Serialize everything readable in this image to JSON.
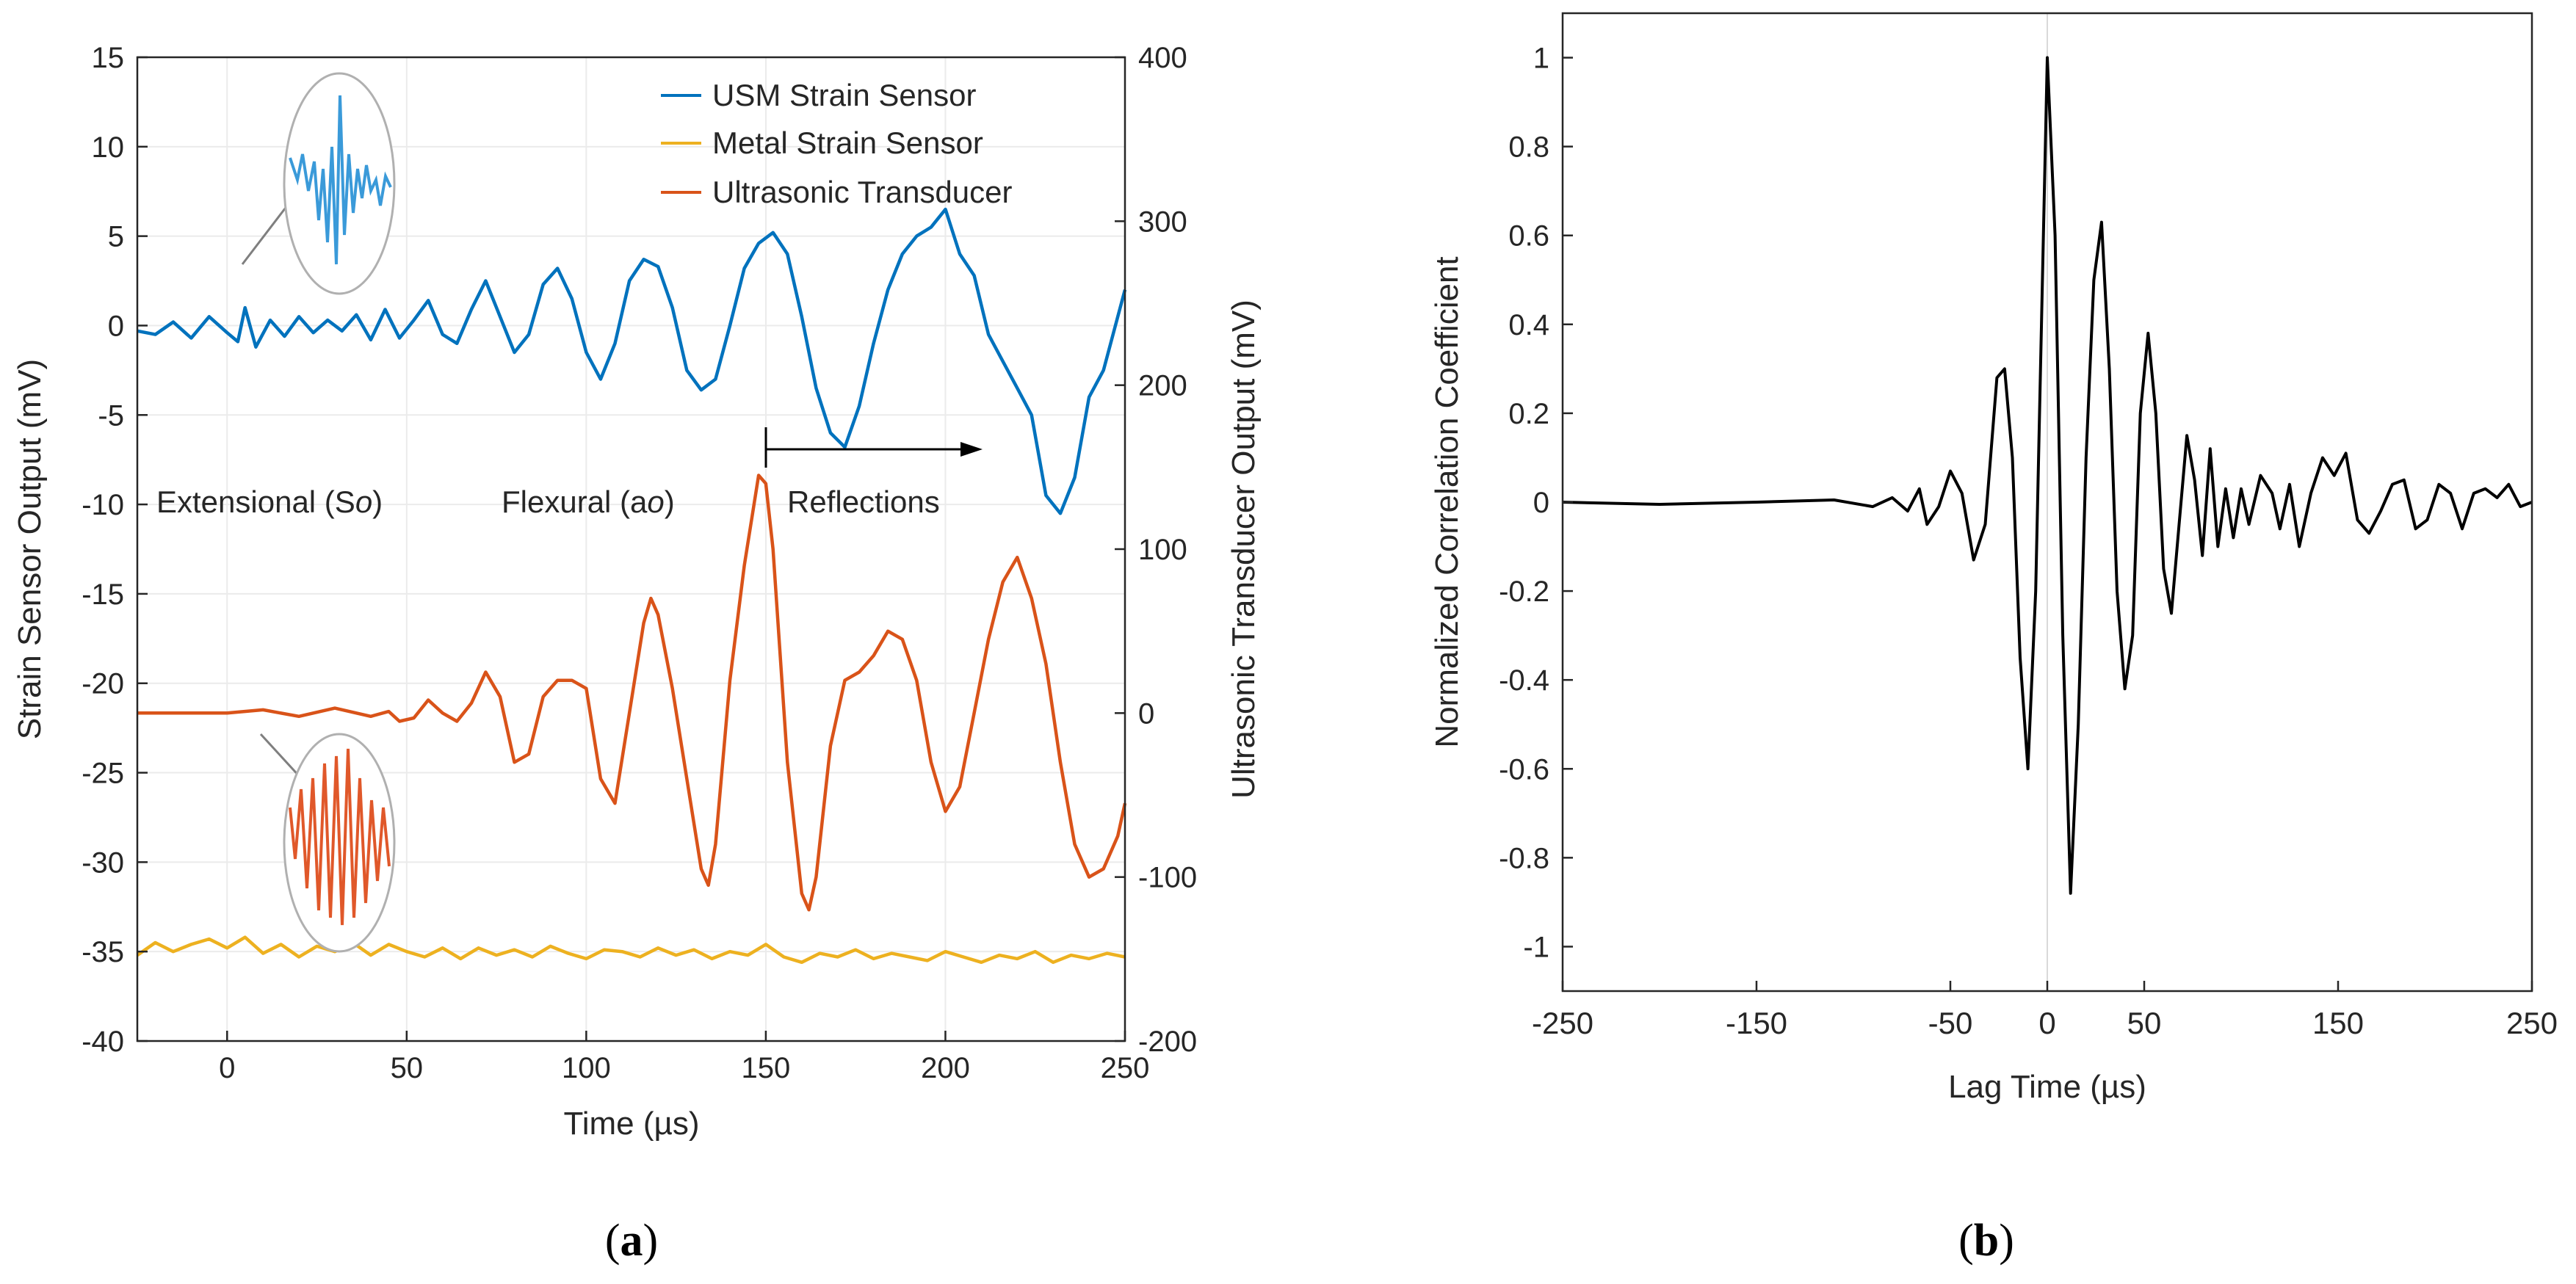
{
  "chart_data": [
    {
      "panel_label": "a",
      "type": "line",
      "title": "",
      "xlabel": "Time (µs)",
      "ylabel": "Strain Sensor Output (mV)",
      "y2label": "Ultrasonic Transducer Output (mV)",
      "xlim": [
        -25,
        250
      ],
      "ylim": [
        -40,
        15
      ],
      "y2lim": [
        -200,
        400
      ],
      "xticks": [
        0,
        50,
        100,
        150,
        200,
        250
      ],
      "yticks": [
        15,
        10,
        5,
        0,
        -5,
        -10,
        -15,
        -20,
        -25,
        -30,
        -35,
        -40
      ],
      "y2ticks": [
        400,
        300,
        200,
        100,
        0,
        -100,
        -200
      ],
      "grid": true,
      "legend": "top-right",
      "annotations": [
        {
          "text": "Extensional (S",
          "sub": "o",
          "tail": ")"
        },
        {
          "text": "Flexural (a",
          "sub": "o",
          "tail": ")"
        },
        {
          "text": "Reflections"
        }
      ],
      "series": [
        {
          "name": "USM Strain Sensor",
          "color": "#0072BD",
          "axis": "left",
          "points": [
            [
              -25,
              -0.3
            ],
            [
              -20,
              -0.5
            ],
            [
              -15,
              0.2
            ],
            [
              -10,
              -0.7
            ],
            [
              -5,
              0.5
            ],
            [
              0,
              -0.4
            ],
            [
              3,
              -0.9
            ],
            [
              5,
              1.0
            ],
            [
              8,
              -1.2
            ],
            [
              12,
              0.3
            ],
            [
              16,
              -0.6
            ],
            [
              20,
              0.5
            ],
            [
              24,
              -0.4
            ],
            [
              28,
              0.3
            ],
            [
              32,
              -0.3
            ],
            [
              36,
              0.6
            ],
            [
              40,
              -0.8
            ],
            [
              44,
              0.9
            ],
            [
              48,
              -0.7
            ],
            [
              52,
              0.3
            ],
            [
              56,
              1.4
            ],
            [
              60,
              -0.5
            ],
            [
              64,
              -1.0
            ],
            [
              68,
              0.9
            ],
            [
              72,
              2.5
            ],
            [
              76,
              0.5
            ],
            [
              80,
              -1.5
            ],
            [
              84,
              -0.5
            ],
            [
              88,
              2.3
            ],
            [
              92,
              3.2
            ],
            [
              96,
              1.5
            ],
            [
              100,
              -1.5
            ],
            [
              104,
              -3.0
            ],
            [
              108,
              -1.0
            ],
            [
              112,
              2.5
            ],
            [
              116,
              3.7
            ],
            [
              120,
              3.3
            ],
            [
              124,
              1.0
            ],
            [
              128,
              -2.5
            ],
            [
              132,
              -3.6
            ],
            [
              136,
              -3.0
            ],
            [
              140,
              0.0
            ],
            [
              144,
              3.2
            ],
            [
              148,
              4.6
            ],
            [
              152,
              5.2
            ],
            [
              156,
              4.0
            ],
            [
              160,
              0.5
            ],
            [
              164,
              -3.5
            ],
            [
              168,
              -6.0
            ],
            [
              172,
              -6.8
            ],
            [
              176,
              -4.5
            ],
            [
              180,
              -1.0
            ],
            [
              184,
              2.0
            ],
            [
              188,
              4.0
            ],
            [
              192,
              5.0
            ],
            [
              196,
              5.5
            ],
            [
              200,
              6.5
            ],
            [
              204,
              4.0
            ],
            [
              208,
              2.8
            ],
            [
              212,
              -0.5
            ],
            [
              216,
              -2.0
            ],
            [
              220,
              -3.5
            ],
            [
              224,
              -5.0
            ],
            [
              228,
              -9.5
            ],
            [
              232,
              -10.5
            ],
            [
              236,
              -8.5
            ],
            [
              240,
              -4.0
            ],
            [
              244,
              -2.5
            ],
            [
              248,
              0.5
            ],
            [
              250,
              2.0
            ]
          ]
        },
        {
          "name": "Metal Strain Sensor",
          "color": "#EDB120",
          "axis": "left",
          "points": [
            [
              -25,
              -35.2
            ],
            [
              -20,
              -34.5
            ],
            [
              -15,
              -35.0
            ],
            [
              -10,
              -34.6
            ],
            [
              -5,
              -34.3
            ],
            [
              0,
              -34.8
            ],
            [
              5,
              -34.2
            ],
            [
              10,
              -35.1
            ],
            [
              15,
              -34.6
            ],
            [
              20,
              -35.3
            ],
            [
              25,
              -34.7
            ],
            [
              30,
              -35.0
            ],
            [
              35,
              -34.5
            ],
            [
              40,
              -35.2
            ],
            [
              45,
              -34.6
            ],
            [
              50,
              -35.0
            ],
            [
              55,
              -35.3
            ],
            [
              60,
              -34.8
            ],
            [
              65,
              -35.4
            ],
            [
              70,
              -34.8
            ],
            [
              75,
              -35.2
            ],
            [
              80,
              -34.9
            ],
            [
              85,
              -35.3
            ],
            [
              90,
              -34.7
            ],
            [
              95,
              -35.1
            ],
            [
              100,
              -35.4
            ],
            [
              105,
              -34.9
            ],
            [
              110,
              -35.0
            ],
            [
              115,
              -35.3
            ],
            [
              120,
              -34.8
            ],
            [
              125,
              -35.2
            ],
            [
              130,
              -34.9
            ],
            [
              135,
              -35.4
            ],
            [
              140,
              -35.0
            ],
            [
              145,
              -35.2
            ],
            [
              150,
              -34.6
            ],
            [
              155,
              -35.3
            ],
            [
              160,
              -35.6
            ],
            [
              165,
              -35.1
            ],
            [
              170,
              -35.3
            ],
            [
              175,
              -34.9
            ],
            [
              180,
              -35.4
            ],
            [
              185,
              -35.1
            ],
            [
              190,
              -35.3
            ],
            [
              195,
              -35.5
            ],
            [
              200,
              -35.0
            ],
            [
              205,
              -35.3
            ],
            [
              210,
              -35.6
            ],
            [
              215,
              -35.2
            ],
            [
              220,
              -35.4
            ],
            [
              225,
              -35.0
            ],
            [
              230,
              -35.6
            ],
            [
              235,
              -35.2
            ],
            [
              240,
              -35.4
            ],
            [
              245,
              -35.1
            ],
            [
              250,
              -35.3
            ]
          ]
        },
        {
          "name": "Ultrasonic Transducer",
          "color": "#D95319",
          "axis": "right",
          "points": [
            [
              -25,
              0
            ],
            [
              0,
              0
            ],
            [
              10,
              2
            ],
            [
              20,
              -2
            ],
            [
              30,
              3
            ],
            [
              40,
              -2
            ],
            [
              45,
              1
            ],
            [
              48,
              -5
            ],
            [
              52,
              -3
            ],
            [
              56,
              8
            ],
            [
              60,
              0
            ],
            [
              64,
              -5
            ],
            [
              68,
              6
            ],
            [
              72,
              25
            ],
            [
              76,
              10
            ],
            [
              80,
              -30
            ],
            [
              84,
              -25
            ],
            [
              88,
              10
            ],
            [
              92,
              20
            ],
            [
              96,
              20
            ],
            [
              100,
              15
            ],
            [
              104,
              -40
            ],
            [
              108,
              -55
            ],
            [
              112,
              0
            ],
            [
              116,
              55
            ],
            [
              118,
              70
            ],
            [
              120,
              60
            ],
            [
              124,
              15
            ],
            [
              128,
              -40
            ],
            [
              132,
              -95
            ],
            [
              134,
              -105
            ],
            [
              136,
              -80
            ],
            [
              140,
              20
            ],
            [
              144,
              90
            ],
            [
              148,
              145
            ],
            [
              150,
              140
            ],
            [
              152,
              100
            ],
            [
              156,
              -30
            ],
            [
              160,
              -110
            ],
            [
              162,
              -120
            ],
            [
              164,
              -100
            ],
            [
              168,
              -20
            ],
            [
              172,
              20
            ],
            [
              176,
              25
            ],
            [
              180,
              35
            ],
            [
              184,
              50
            ],
            [
              188,
              45
            ],
            [
              192,
              20
            ],
            [
              196,
              -30
            ],
            [
              200,
              -60
            ],
            [
              204,
              -45
            ],
            [
              208,
              0
            ],
            [
              212,
              45
            ],
            [
              216,
              80
            ],
            [
              220,
              95
            ],
            [
              224,
              70
            ],
            [
              228,
              30
            ],
            [
              232,
              -30
            ],
            [
              236,
              -80
            ],
            [
              240,
              -100
            ],
            [
              244,
              -95
            ],
            [
              248,
              -75
            ],
            [
              250,
              -55
            ]
          ]
        }
      ]
    },
    {
      "panel_label": "b",
      "type": "line",
      "title": "",
      "xlabel": "Lag Time (µs)",
      "ylabel": "Normalized Correlation Coefficient",
      "xlim": [
        -250,
        250
      ],
      "ylim": [
        -1.1,
        1.1
      ],
      "xticks": [
        -250,
        -150,
        -50,
        0,
        50,
        150,
        250
      ],
      "yticks": [
        1,
        0.8,
        0.6,
        0.4,
        0.2,
        0,
        -0.2,
        -0.4,
        -0.6,
        -0.8,
        -1
      ],
      "grid": false,
      "series": [
        {
          "color": "#000000",
          "points": [
            [
              -250,
              0
            ],
            [
              -200,
              -0.005
            ],
            [
              -150,
              0
            ],
            [
              -110,
              0.005
            ],
            [
              -90,
              -0.01
            ],
            [
              -80,
              0.01
            ],
            [
              -72,
              -0.02
            ],
            [
              -66,
              0.03
            ],
            [
              -62,
              -0.05
            ],
            [
              -56,
              -0.01
            ],
            [
              -50,
              0.07
            ],
            [
              -44,
              0.02
            ],
            [
              -38,
              -0.13
            ],
            [
              -32,
              -0.05
            ],
            [
              -26,
              0.28
            ],
            [
              -22,
              0.3
            ],
            [
              -18,
              0.1
            ],
            [
              -14,
              -0.35
            ],
            [
              -10,
              -0.6
            ],
            [
              -6,
              -0.2
            ],
            [
              -2,
              0.6
            ],
            [
              0,
              1.0
            ],
            [
              4,
              0.6
            ],
            [
              8,
              -0.3
            ],
            [
              12,
              -0.88
            ],
            [
              16,
              -0.5
            ],
            [
              20,
              0.1
            ],
            [
              24,
              0.5
            ],
            [
              28,
              0.63
            ],
            [
              32,
              0.3
            ],
            [
              36,
              -0.2
            ],
            [
              40,
              -0.42
            ],
            [
              44,
              -0.3
            ],
            [
              48,
              0.2
            ],
            [
              52,
              0.38
            ],
            [
              56,
              0.2
            ],
            [
              60,
              -0.15
            ],
            [
              64,
              -0.25
            ],
            [
              68,
              -0.05
            ],
            [
              72,
              0.15
            ],
            [
              76,
              0.05
            ],
            [
              80,
              -0.12
            ],
            [
              84,
              0.12
            ],
            [
              88,
              -0.1
            ],
            [
              92,
              0.03
            ],
            [
              96,
              -0.08
            ],
            [
              100,
              0.03
            ],
            [
              104,
              -0.05
            ],
            [
              110,
              0.06
            ],
            [
              116,
              0.02
            ],
            [
              120,
              -0.06
            ],
            [
              125,
              0.04
            ],
            [
              130,
              -0.1
            ],
            [
              136,
              0.02
            ],
            [
              142,
              0.1
            ],
            [
              148,
              0.06
            ],
            [
              154,
              0.11
            ],
            [
              160,
              -0.04
            ],
            [
              166,
              -0.07
            ],
            [
              172,
              -0.02
            ],
            [
              178,
              0.04
            ],
            [
              184,
              0.05
            ],
            [
              190,
              -0.06
            ],
            [
              196,
              -0.04
            ],
            [
              202,
              0.04
            ],
            [
              208,
              0.02
            ],
            [
              214,
              -0.06
            ],
            [
              220,
              0.02
            ],
            [
              226,
              0.03
            ],
            [
              232,
              0.01
            ],
            [
              238,
              0.04
            ],
            [
              244,
              -0.01
            ],
            [
              250,
              0
            ]
          ]
        }
      ]
    }
  ]
}
